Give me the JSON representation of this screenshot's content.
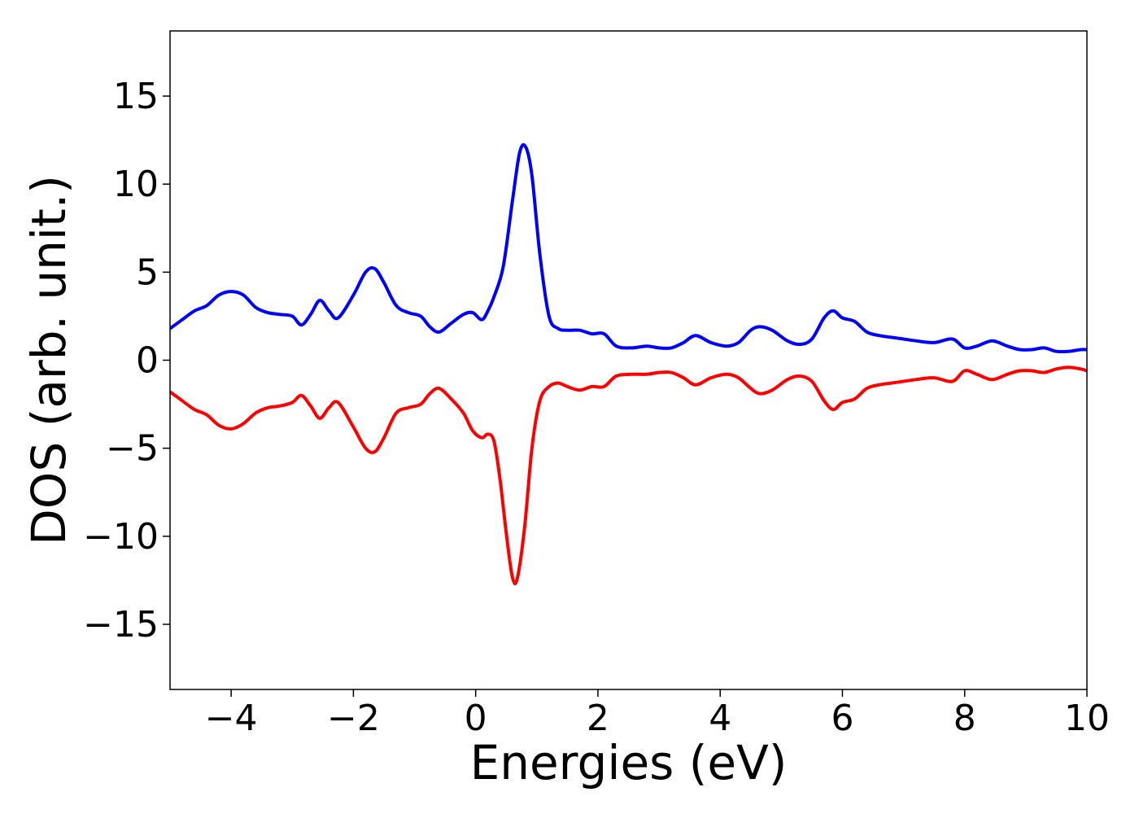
{
  "chart_data": {
    "type": "line",
    "title": "",
    "xlabel": "Energies (eV)",
    "ylabel": "DOS (arb. unit.)",
    "xlim": [
      -5,
      10
    ],
    "ylim": [
      -18.7,
      18.7
    ],
    "xticks": [
      -4,
      -2,
      0,
      2,
      4,
      6,
      8,
      10
    ],
    "xtick_labels": [
      "−4",
      "−2",
      "0",
      "2",
      "4",
      "6",
      "8",
      "10"
    ],
    "yticks": [
      -15,
      -10,
      -5,
      0,
      5,
      10,
      15
    ],
    "ytick_labels": [
      "−15",
      "−10",
      "−5",
      "0",
      "5",
      "10",
      "15"
    ],
    "grid": false,
    "series": [
      {
        "color": "#0000ff",
        "x": [
          -5.0,
          -4.8,
          -4.6,
          -4.4,
          -4.2,
          -4.0,
          -3.8,
          -3.6,
          -3.4,
          -3.2,
          -3.0,
          -2.85,
          -2.7,
          -2.55,
          -2.4,
          -2.25,
          -2.0,
          -1.8,
          -1.65,
          -1.5,
          -1.3,
          -1.1,
          -0.9,
          -0.75,
          -0.6,
          -0.4,
          -0.2,
          -0.05,
          0.1,
          0.2,
          0.3,
          0.45,
          0.6,
          0.72,
          0.82,
          0.92,
          1.05,
          1.2,
          1.35,
          1.5,
          1.7,
          1.9,
          2.1,
          2.3,
          2.55,
          2.8,
          3.0,
          3.2,
          3.4,
          3.6,
          3.85,
          4.1,
          4.3,
          4.5,
          4.65,
          4.85,
          5.1,
          5.3,
          5.5,
          5.7,
          5.85,
          6.0,
          6.2,
          6.4,
          6.6,
          6.8,
          7.0,
          7.2,
          7.5,
          7.8,
          8.0,
          8.2,
          8.45,
          8.7,
          8.9,
          9.1,
          9.3,
          9.5,
          9.7,
          9.9,
          10.0
        ],
        "y": [
          1.8,
          2.3,
          2.8,
          3.1,
          3.7,
          3.9,
          3.7,
          3.0,
          2.7,
          2.6,
          2.5,
          2.0,
          2.6,
          3.4,
          2.8,
          2.4,
          3.7,
          5.0,
          5.2,
          4.4,
          3.1,
          2.7,
          2.5,
          1.9,
          1.6,
          2.1,
          2.6,
          2.7,
          2.3,
          2.8,
          3.6,
          5.3,
          9.0,
          11.8,
          12.1,
          10.5,
          6.0,
          2.5,
          1.8,
          1.7,
          1.7,
          1.5,
          1.5,
          0.8,
          0.7,
          0.8,
          0.7,
          0.7,
          1.0,
          1.4,
          1.0,
          0.8,
          1.0,
          1.7,
          1.9,
          1.7,
          1.1,
          0.9,
          1.2,
          2.4,
          2.8,
          2.4,
          2.2,
          1.6,
          1.4,
          1.3,
          1.2,
          1.1,
          1.0,
          1.2,
          0.7,
          0.8,
          1.1,
          0.8,
          0.6,
          0.6,
          0.7,
          0.5,
          0.5,
          0.6,
          0.6
        ]
      },
      {
        "color": "#ff0000",
        "x": [
          -5.0,
          -4.8,
          -4.6,
          -4.4,
          -4.2,
          -4.0,
          -3.8,
          -3.6,
          -3.4,
          -3.2,
          -3.0,
          -2.85,
          -2.7,
          -2.55,
          -2.4,
          -2.25,
          -2.0,
          -1.8,
          -1.65,
          -1.5,
          -1.3,
          -1.1,
          -0.9,
          -0.75,
          -0.6,
          -0.4,
          -0.2,
          -0.05,
          0.1,
          0.2,
          0.3,
          0.4,
          0.5,
          0.6,
          0.68,
          0.8,
          0.92,
          1.05,
          1.2,
          1.35,
          1.5,
          1.7,
          1.9,
          2.1,
          2.3,
          2.55,
          2.8,
          3.0,
          3.2,
          3.4,
          3.6,
          3.85,
          4.1,
          4.3,
          4.5,
          4.65,
          4.85,
          5.1,
          5.3,
          5.5,
          5.7,
          5.85,
          6.0,
          6.2,
          6.4,
          6.6,
          6.8,
          7.0,
          7.2,
          7.5,
          7.8,
          8.0,
          8.2,
          8.45,
          8.7,
          8.9,
          9.1,
          9.3,
          9.5,
          9.7,
          9.9,
          10.0
        ],
        "y": [
          -1.8,
          -2.3,
          -2.8,
          -3.1,
          -3.7,
          -3.9,
          -3.6,
          -3.0,
          -2.7,
          -2.6,
          -2.4,
          -2.0,
          -2.6,
          -3.3,
          -2.7,
          -2.4,
          -3.8,
          -5.0,
          -5.2,
          -4.4,
          -3.0,
          -2.7,
          -2.5,
          -1.9,
          -1.6,
          -2.2,
          -3.0,
          -4.0,
          -4.4,
          -4.2,
          -4.6,
          -6.8,
          -9.8,
          -12.3,
          -12.4,
          -9.5,
          -5.0,
          -2.3,
          -1.5,
          -1.3,
          -1.5,
          -1.7,
          -1.5,
          -1.5,
          -0.9,
          -0.8,
          -0.8,
          -0.7,
          -0.7,
          -1.0,
          -1.4,
          -1.0,
          -0.8,
          -1.0,
          -1.6,
          -1.9,
          -1.7,
          -1.1,
          -0.9,
          -1.2,
          -2.3,
          -2.8,
          -2.4,
          -2.2,
          -1.6,
          -1.4,
          -1.3,
          -1.2,
          -1.1,
          -1.0,
          -1.2,
          -0.6,
          -0.8,
          -1.1,
          -0.8,
          -0.6,
          -0.6,
          -0.7,
          -0.5,
          -0.4,
          -0.5,
          -0.6
        ]
      }
    ]
  }
}
